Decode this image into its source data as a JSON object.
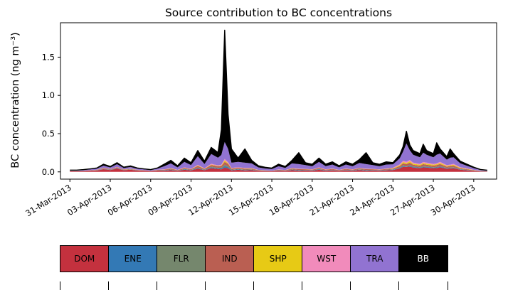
{
  "chart_data": {
    "type": "area",
    "stacked": true,
    "title": "Source contribution to BC concentrations",
    "xlabel": "",
    "ylabel": "BC concentration (ng m⁻³)",
    "legend_position": "bottom",
    "x_unit": "days since 31-Mar-2013",
    "xlim": [
      -0.7,
      31.7
    ],
    "ylim": [
      -0.095,
      1.95
    ],
    "xtick_values": [
      0,
      3,
      6,
      9,
      12,
      15,
      18,
      21,
      24,
      27,
      30
    ],
    "xtick_labels": [
      "31-Mar-2013",
      "03-Apr-2013",
      "06-Apr-2013",
      "09-Apr-2013",
      "12-Apr-2013",
      "15-Apr-2013",
      "18-Apr-2013",
      "21-Apr-2013",
      "24-Apr-2013",
      "27-Apr-2013",
      "30-Apr-2013"
    ],
    "ytick_values": [
      0,
      0.5,
      1.0,
      1.5
    ],
    "ytick_labels": [
      "0.0",
      "0.5",
      "1.0",
      "1.5"
    ],
    "x": [
      0,
      0.5,
      1,
      1.5,
      2,
      2.5,
      3,
      3.5,
      4,
      4.5,
      5,
      5.5,
      6,
      6.5,
      7,
      7.5,
      8,
      8.5,
      9,
      9.5,
      10,
      10.5,
      11,
      11.25,
      11.5,
      11.75,
      12,
      12.5,
      13,
      13.5,
      14,
      14.5,
      15,
      15.5,
      16,
      16.5,
      17,
      17.5,
      18,
      18.5,
      19,
      19.5,
      20,
      20.5,
      21,
      21.5,
      22,
      22.5,
      23,
      23.5,
      24,
      24.5,
      24.75,
      25,
      25.25,
      25.5,
      26,
      26.25,
      26.5,
      27,
      27.25,
      27.5,
      28,
      28.25,
      28.5,
      29,
      29.5,
      30,
      30.5,
      31
    ],
    "series": [
      {
        "name": "DOM",
        "color": "#c4313e",
        "text_color": "#000000",
        "values": [
          0.007,
          0.007,
          0.01,
          0.014,
          0.017,
          0.035,
          0.024,
          0.042,
          0.021,
          0.028,
          0.017,
          0.014,
          0.01,
          0.017,
          0.015,
          0.022,
          0.012,
          0.027,
          0.018,
          0.042,
          0.021,
          0.048,
          0.038,
          0.033,
          0.056,
          0.045,
          0.018,
          0.027,
          0.018,
          0.022,
          0.012,
          0.009,
          0.008,
          0.015,
          0.011,
          0.022,
          0.015,
          0.018,
          0.015,
          0.027,
          0.015,
          0.02,
          0.012,
          0.02,
          0.015,
          0.024,
          0.015,
          0.018,
          0.015,
          0.02,
          0.024,
          0.044,
          0.066,
          0.064,
          0.07,
          0.056,
          0.048,
          0.058,
          0.056,
          0.048,
          0.05,
          0.06,
          0.04,
          0.045,
          0.048,
          0.028,
          0.02,
          0.012,
          0.006,
          0.004
        ]
      },
      {
        "name": "ENE",
        "color": "#3379b5",
        "text_color": "#000000",
        "values": [
          0.001,
          0.001,
          0.001,
          0.001,
          0.002,
          0.003,
          0.002,
          0.004,
          0.002,
          0.002,
          0.002,
          0.001,
          0.001,
          0.002,
          0.003,
          0.005,
          0.002,
          0.005,
          0.004,
          0.008,
          0.004,
          0.01,
          0.008,
          0.011,
          0.019,
          0.015,
          0.006,
          0.005,
          0.006,
          0.005,
          0.002,
          0.002,
          0.001,
          0.003,
          0.002,
          0.005,
          0.005,
          0.004,
          0.003,
          0.005,
          0.003,
          0.004,
          0.002,
          0.004,
          0.003,
          0.005,
          0.005,
          0.004,
          0.003,
          0.004,
          0.004,
          0.007,
          0.01,
          0.005,
          0.011,
          0.008,
          0.007,
          0.009,
          0.008,
          0.007,
          0.008,
          0.009,
          0.006,
          0.007,
          0.007,
          0.004,
          0.003,
          0.002,
          0.001,
          0.001
        ]
      },
      {
        "name": "FLR",
        "color": "#75876d",
        "text_color": "#000000",
        "values": [
          0.001,
          0.001,
          0.001,
          0.001,
          0.002,
          0.003,
          0.002,
          0.004,
          0.002,
          0.002,
          0.002,
          0.001,
          0.001,
          0.002,
          0.003,
          0.005,
          0.002,
          0.005,
          0.004,
          0.008,
          0.004,
          0.01,
          0.008,
          0.011,
          0.019,
          0.015,
          0.006,
          0.005,
          0.006,
          0.005,
          0.002,
          0.002,
          0.001,
          0.003,
          0.002,
          0.005,
          0.005,
          0.004,
          0.003,
          0.005,
          0.003,
          0.004,
          0.002,
          0.004,
          0.003,
          0.005,
          0.005,
          0.004,
          0.003,
          0.004,
          0.004,
          0.007,
          0.01,
          0.005,
          0.011,
          0.008,
          0.007,
          0.009,
          0.008,
          0.007,
          0.008,
          0.009,
          0.006,
          0.007,
          0.007,
          0.004,
          0.003,
          0.002,
          0.001,
          0.001
        ]
      },
      {
        "name": "IND",
        "color": "#ba5f52",
        "text_color": "#000000",
        "values": [
          0.002,
          0.002,
          0.002,
          0.003,
          0.004,
          0.008,
          0.006,
          0.01,
          0.005,
          0.006,
          0.004,
          0.003,
          0.002,
          0.004,
          0.007,
          0.01,
          0.006,
          0.013,
          0.008,
          0.02,
          0.01,
          0.022,
          0.018,
          0.022,
          0.037,
          0.03,
          0.012,
          0.013,
          0.012,
          0.01,
          0.006,
          0.004,
          0.004,
          0.007,
          0.005,
          0.01,
          0.01,
          0.008,
          0.007,
          0.013,
          0.007,
          0.009,
          0.006,
          0.009,
          0.007,
          0.011,
          0.01,
          0.008,
          0.007,
          0.009,
          0.01,
          0.018,
          0.026,
          0.027,
          0.028,
          0.022,
          0.019,
          0.025,
          0.022,
          0.019,
          0.023,
          0.024,
          0.016,
          0.018,
          0.019,
          0.011,
          0.008,
          0.005,
          0.002,
          0.002
        ]
      },
      {
        "name": "SHP",
        "color": "#e7ca15",
        "text_color": "#000000",
        "values": [
          0.001,
          0.001,
          0.001,
          0.001,
          0.001,
          0.002,
          0.001,
          0.002,
          0.001,
          0.002,
          0.001,
          0.001,
          0.001,
          0.001,
          0.002,
          0.003,
          0.002,
          0.004,
          0.002,
          0.006,
          0.003,
          0.006,
          0.005,
          0.006,
          0.019,
          0.008,
          0.003,
          0.004,
          0.003,
          0.003,
          0.002,
          0.001,
          0.001,
          0.002,
          0.001,
          0.003,
          0.003,
          0.002,
          0.002,
          0.004,
          0.002,
          0.003,
          0.002,
          0.003,
          0.002,
          0.003,
          0.003,
          0.002,
          0.002,
          0.003,
          0.006,
          0.011,
          0.017,
          0.016,
          0.018,
          0.014,
          0.012,
          0.014,
          0.014,
          0.012,
          0.011,
          0.015,
          0.01,
          0.009,
          0.012,
          0.007,
          0.005,
          0.003,
          0.002,
          0.001
        ]
      },
      {
        "name": "WST",
        "color": "#f18bbb",
        "text_color": "#000000",
        "values": [
          0.001,
          0.001,
          0.001,
          0.001,
          0.002,
          0.003,
          0.002,
          0.004,
          0.002,
          0.002,
          0.002,
          0.001,
          0.001,
          0.002,
          0.003,
          0.005,
          0.002,
          0.005,
          0.004,
          0.008,
          0.004,
          0.01,
          0.008,
          0.011,
          0.019,
          0.015,
          0.006,
          0.005,
          0.006,
          0.005,
          0.002,
          0.002,
          0.001,
          0.003,
          0.002,
          0.005,
          0.005,
          0.004,
          0.003,
          0.005,
          0.004,
          0.004,
          0.002,
          0.004,
          0.003,
          0.005,
          0.005,
          0.004,
          0.003,
          0.004,
          0.006,
          0.011,
          0.017,
          0.016,
          0.018,
          0.014,
          0.012,
          0.014,
          0.014,
          0.012,
          0.011,
          0.015,
          0.01,
          0.009,
          0.012,
          0.007,
          0.005,
          0.003,
          0.002,
          0.001
        ]
      },
      {
        "name": "TRA",
        "color": "#9173d1",
        "text_color": "#000000",
        "values": [
          0.006,
          0.006,
          0.008,
          0.011,
          0.014,
          0.028,
          0.02,
          0.034,
          0.017,
          0.022,
          0.014,
          0.011,
          0.008,
          0.014,
          0.04,
          0.06,
          0.032,
          0.072,
          0.048,
          0.112,
          0.056,
          0.128,
          0.1,
          0.127,
          0.222,
          0.172,
          0.069,
          0.072,
          0.069,
          0.06,
          0.032,
          0.024,
          0.02,
          0.04,
          0.028,
          0.06,
          0.058,
          0.048,
          0.04,
          0.072,
          0.04,
          0.052,
          0.032,
          0.052,
          0.04,
          0.064,
          0.058,
          0.048,
          0.04,
          0.052,
          0.043,
          0.079,
          0.119,
          0.239,
          0.126,
          0.101,
          0.086,
          0.122,
          0.101,
          0.086,
          0.114,
          0.108,
          0.072,
          0.09,
          0.086,
          0.05,
          0.036,
          0.022,
          0.011,
          0.007
        ]
      },
      {
        "name": "BB",
        "color": "#000000",
        "text_color": "#ffffff",
        "values": [
          0.004,
          0.004,
          0.006,
          0.007,
          0.009,
          0.018,
          0.013,
          0.021,
          0.011,
          0.014,
          0.009,
          0.007,
          0.006,
          0.009,
          0.027,
          0.04,
          0.022,
          0.049,
          0.032,
          0.076,
          0.038,
          0.086,
          0.068,
          0.33,
          1.462,
          0.45,
          0.18,
          0.049,
          0.18,
          0.04,
          0.022,
          0.016,
          0.014,
          0.027,
          0.019,
          0.04,
          0.15,
          0.032,
          0.027,
          0.049,
          0.027,
          0.035,
          0.022,
          0.035,
          0.027,
          0.043,
          0.15,
          0.032,
          0.027,
          0.035,
          0.024,
          0.044,
          0.066,
          0.159,
          0.07,
          0.056,
          0.048,
          0.11,
          0.056,
          0.048,
          0.155,
          0.06,
          0.04,
          0.115,
          0.048,
          0.028,
          0.02,
          0.012,
          0.006,
          0.004
        ]
      }
    ]
  }
}
